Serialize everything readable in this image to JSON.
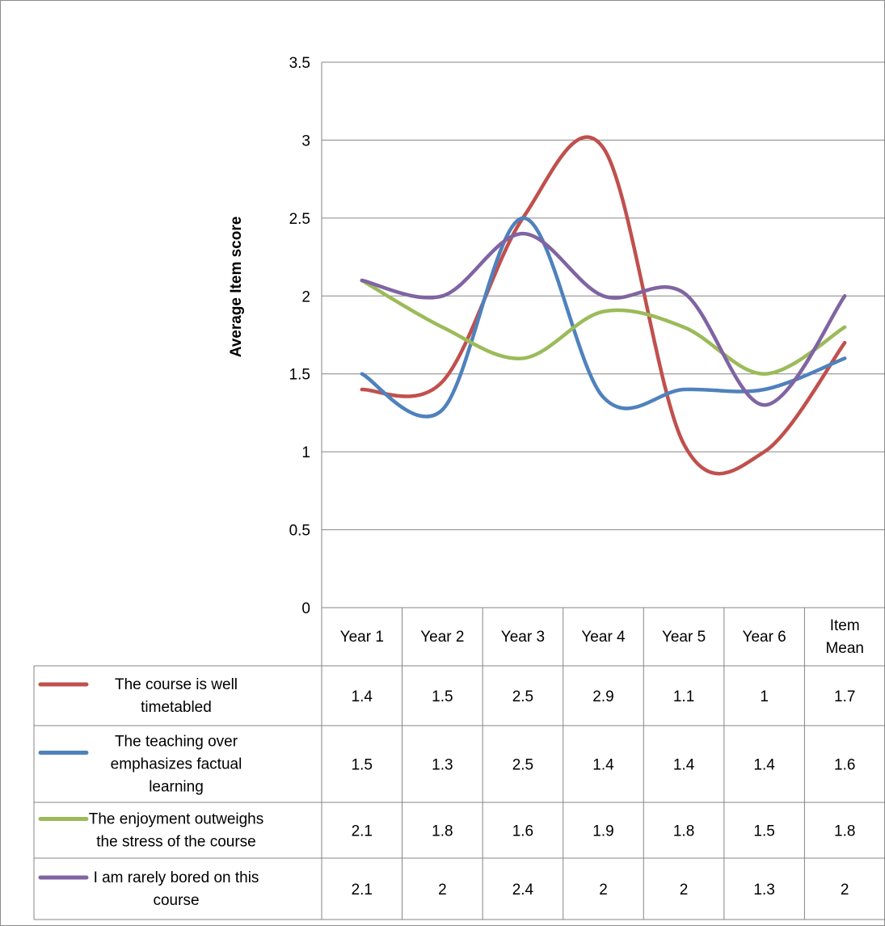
{
  "chart_data": {
    "type": "line",
    "smooth": true,
    "ylabel": "Average Item score",
    "ylim": [
      0,
      3.5
    ],
    "yticks": [
      "0",
      "0.5",
      "1",
      "1.5",
      "2",
      "2.5",
      "3",
      "3.5"
    ],
    "grid": true,
    "legend": "data-table",
    "categories": [
      "Year 1",
      "Year 2",
      "Year 3",
      "Year 4",
      "Year 5",
      "Year 6",
      "Item Mean"
    ],
    "series": [
      {
        "name": "The course is well timetabled",
        "color": "#c0504d",
        "values": [
          1.4,
          1.5,
          2.5,
          2.9,
          1.1,
          1,
          1.7
        ],
        "labels": [
          "1.4",
          "1.5",
          "2.5",
          "2.9",
          "1.1",
          "1",
          "1.7"
        ],
        "plotted": [
          1.4,
          1.45,
          2.5,
          2.95,
          1.05,
          1.0,
          1.7
        ]
      },
      {
        "name": "The teaching over emphasizes factual learning",
        "color": "#4f81bd",
        "values": [
          1.5,
          1.3,
          2.5,
          1.4,
          1.4,
          1.4,
          1.6
        ],
        "labels": [
          "1.5",
          "1.3",
          "2.5",
          "1.4",
          "1.4",
          "1.4",
          "1.6"
        ],
        "plotted": [
          1.5,
          1.27,
          2.5,
          1.35,
          1.4,
          1.4,
          1.6
        ]
      },
      {
        "name": "The enjoyment outweighs the stress of the course",
        "color": "#9bbb59",
        "values": [
          2.1,
          1.8,
          1.6,
          1.9,
          1.8,
          1.5,
          1.8
        ],
        "labels": [
          "2.1",
          "1.8",
          "1.6",
          "1.9",
          "1.8",
          "1.5",
          "1.8"
        ],
        "plotted": [
          2.1,
          1.8,
          1.6,
          1.9,
          1.8,
          1.5,
          1.8
        ]
      },
      {
        "name": "I am rarely bored on this course",
        "color": "#8064a2",
        "values": [
          2.1,
          2,
          2.4,
          2,
          2,
          1.3,
          2
        ],
        "labels": [
          "2.1",
          "2",
          "2.4",
          "2",
          "2",
          "1.3",
          "2"
        ],
        "plotted": [
          2.1,
          2.0,
          2.4,
          2.0,
          2.02,
          1.3,
          2.0
        ]
      }
    ],
    "legend_lines": [
      [
        "The course is well",
        "timetabled"
      ],
      [
        "The teaching over",
        "emphasizes factual",
        "learning"
      ],
      [
        "The enjoyment outweighs",
        "the stress of the course"
      ],
      [
        "I am rarely bored on this",
        "course"
      ]
    ],
    "category_lines": [
      [
        "Year 1"
      ],
      [
        "Year 2"
      ],
      [
        "Year 3"
      ],
      [
        "Year 4"
      ],
      [
        "Year 5"
      ],
      [
        "Year 6"
      ],
      [
        "Item",
        "Mean"
      ]
    ]
  }
}
